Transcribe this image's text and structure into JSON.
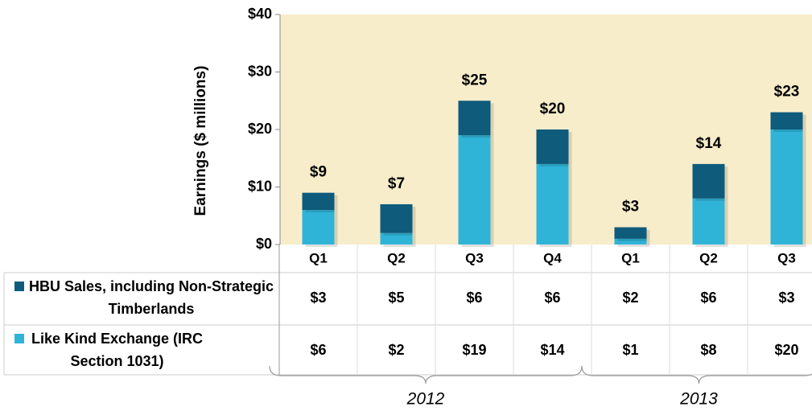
{
  "chart_data": {
    "type": "stacked_bar",
    "y_label": "Earnings ($ millions)",
    "categories": [
      "Q1",
      "Q2",
      "Q3",
      "Q4",
      "Q1",
      "Q2",
      "Q3"
    ],
    "groups": [
      {
        "label": "2012",
        "count": 4
      },
      {
        "label": "2013",
        "count": 3
      }
    ],
    "series": [
      {
        "name": "HBU Sales, including Non-Strategic Timberlands",
        "color": "#0e5b7c",
        "values": [
          3,
          5,
          6,
          6,
          2,
          6,
          3
        ],
        "value_labels": [
          "$3",
          "$5",
          "$6",
          "$6",
          "$2",
          "$6",
          "$3"
        ]
      },
      {
        "name": "Like Kind Exchange (IRC Section 1031)",
        "color": "#2fb4d8",
        "values": [
          6,
          2,
          19,
          14,
          1,
          8,
          20
        ],
        "value_labels": [
          "$6",
          "$2",
          "$19",
          "$14",
          "$1",
          "$8",
          "$20"
        ]
      }
    ],
    "totals": [
      9,
      7,
      25,
      20,
      3,
      14,
      23
    ],
    "total_labels": [
      "$9",
      "$7",
      "$25",
      "$20",
      "$3",
      "$14",
      "$23"
    ],
    "ylim": [
      0,
      40
    ],
    "yticks": [
      {
        "value": 0,
        "label": "$0"
      },
      {
        "value": 10,
        "label": "$10"
      },
      {
        "value": 20,
        "label": "$20"
      },
      {
        "value": 30,
        "label": "$30"
      },
      {
        "value": 40,
        "label": "$40"
      }
    ]
  }
}
